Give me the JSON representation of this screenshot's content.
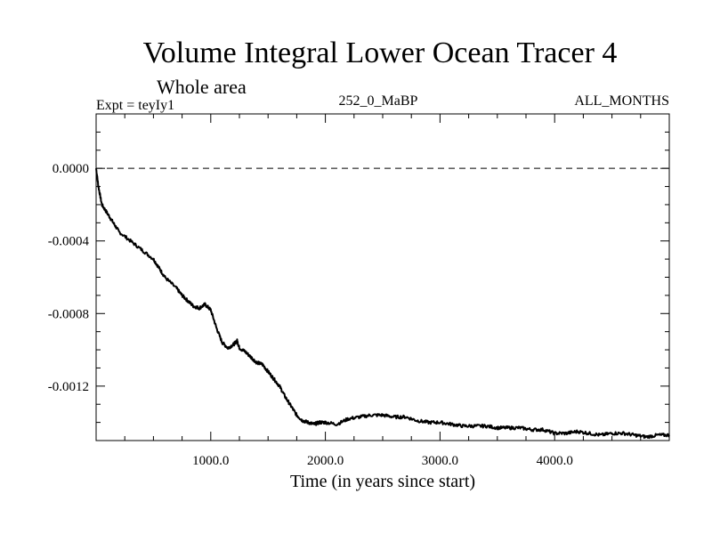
{
  "chart_data": {
    "type": "line",
    "title": "Volume Integral Lower Ocean Tracer 4",
    "subtitle": "Whole area",
    "header_left": "Expt = teyIy1",
    "header_center": "252_0_MaBP",
    "header_right": "ALL_MONTHS",
    "xlabel": "Time (in years since start)",
    "ylabel": "",
    "xlim": [
      0,
      5000
    ],
    "ylim": [
      -0.0015,
      0.0003
    ],
    "x_ticks": [
      1000,
      2000,
      3000,
      4000
    ],
    "x_tick_labels": [
      "1000.0",
      "2000.0",
      "3000.0",
      "4000.0"
    ],
    "y_ticks": [
      0.0,
      -0.0004,
      -0.0008,
      -0.0012
    ],
    "y_tick_labels": [
      "0.0000",
      "-0.0004",
      "-0.0008",
      "-0.0012"
    ],
    "reference_line": 0.0,
    "series": [
      {
        "name": "Lower Ocean Tracer 4",
        "x": [
          0,
          20,
          50,
          100,
          150,
          200,
          300,
          400,
          500,
          550,
          600,
          700,
          750,
          800,
          850,
          900,
          950,
          1000,
          1050,
          1100,
          1150,
          1200,
          1230,
          1250,
          1300,
          1350,
          1400,
          1450,
          1500,
          1550,
          1600,
          1650,
          1700,
          1750,
          1800,
          1850,
          1900,
          1950,
          2000,
          2100,
          2200,
          2300,
          2400,
          2500,
          2600,
          2700,
          2800,
          2900,
          3000,
          3100,
          3200,
          3300,
          3400,
          3500,
          3600,
          3700,
          3800,
          3900,
          4000,
          4100,
          4200,
          4300,
          4400,
          4500,
          4600,
          4700,
          4800,
          4900,
          5000
        ],
        "y": [
          0.0,
          -0.0001,
          -0.0002,
          -0.00025,
          -0.0003,
          -0.00035,
          -0.0004,
          -0.00045,
          -0.0005,
          -0.00055,
          -0.0006,
          -0.00066,
          -0.0007,
          -0.00073,
          -0.00076,
          -0.00077,
          -0.00075,
          -0.00078,
          -0.00088,
          -0.00096,
          -0.00099,
          -0.00097,
          -0.00095,
          -0.00099,
          -0.00101,
          -0.00104,
          -0.00107,
          -0.00108,
          -0.00112,
          -0.00116,
          -0.0012,
          -0.00126,
          -0.00131,
          -0.00136,
          -0.00139,
          -0.0014,
          -0.00141,
          -0.0014,
          -0.0014,
          -0.00141,
          -0.00138,
          -0.00137,
          -0.00136,
          -0.00136,
          -0.00137,
          -0.00137,
          -0.00139,
          -0.0014,
          -0.0014,
          -0.00141,
          -0.00142,
          -0.00142,
          -0.00142,
          -0.00143,
          -0.00143,
          -0.00143,
          -0.00144,
          -0.00144,
          -0.00146,
          -0.00146,
          -0.00145,
          -0.00146,
          -0.00147,
          -0.00146,
          -0.00146,
          -0.00147,
          -0.00148,
          -0.00147,
          -0.00147
        ]
      }
    ]
  }
}
